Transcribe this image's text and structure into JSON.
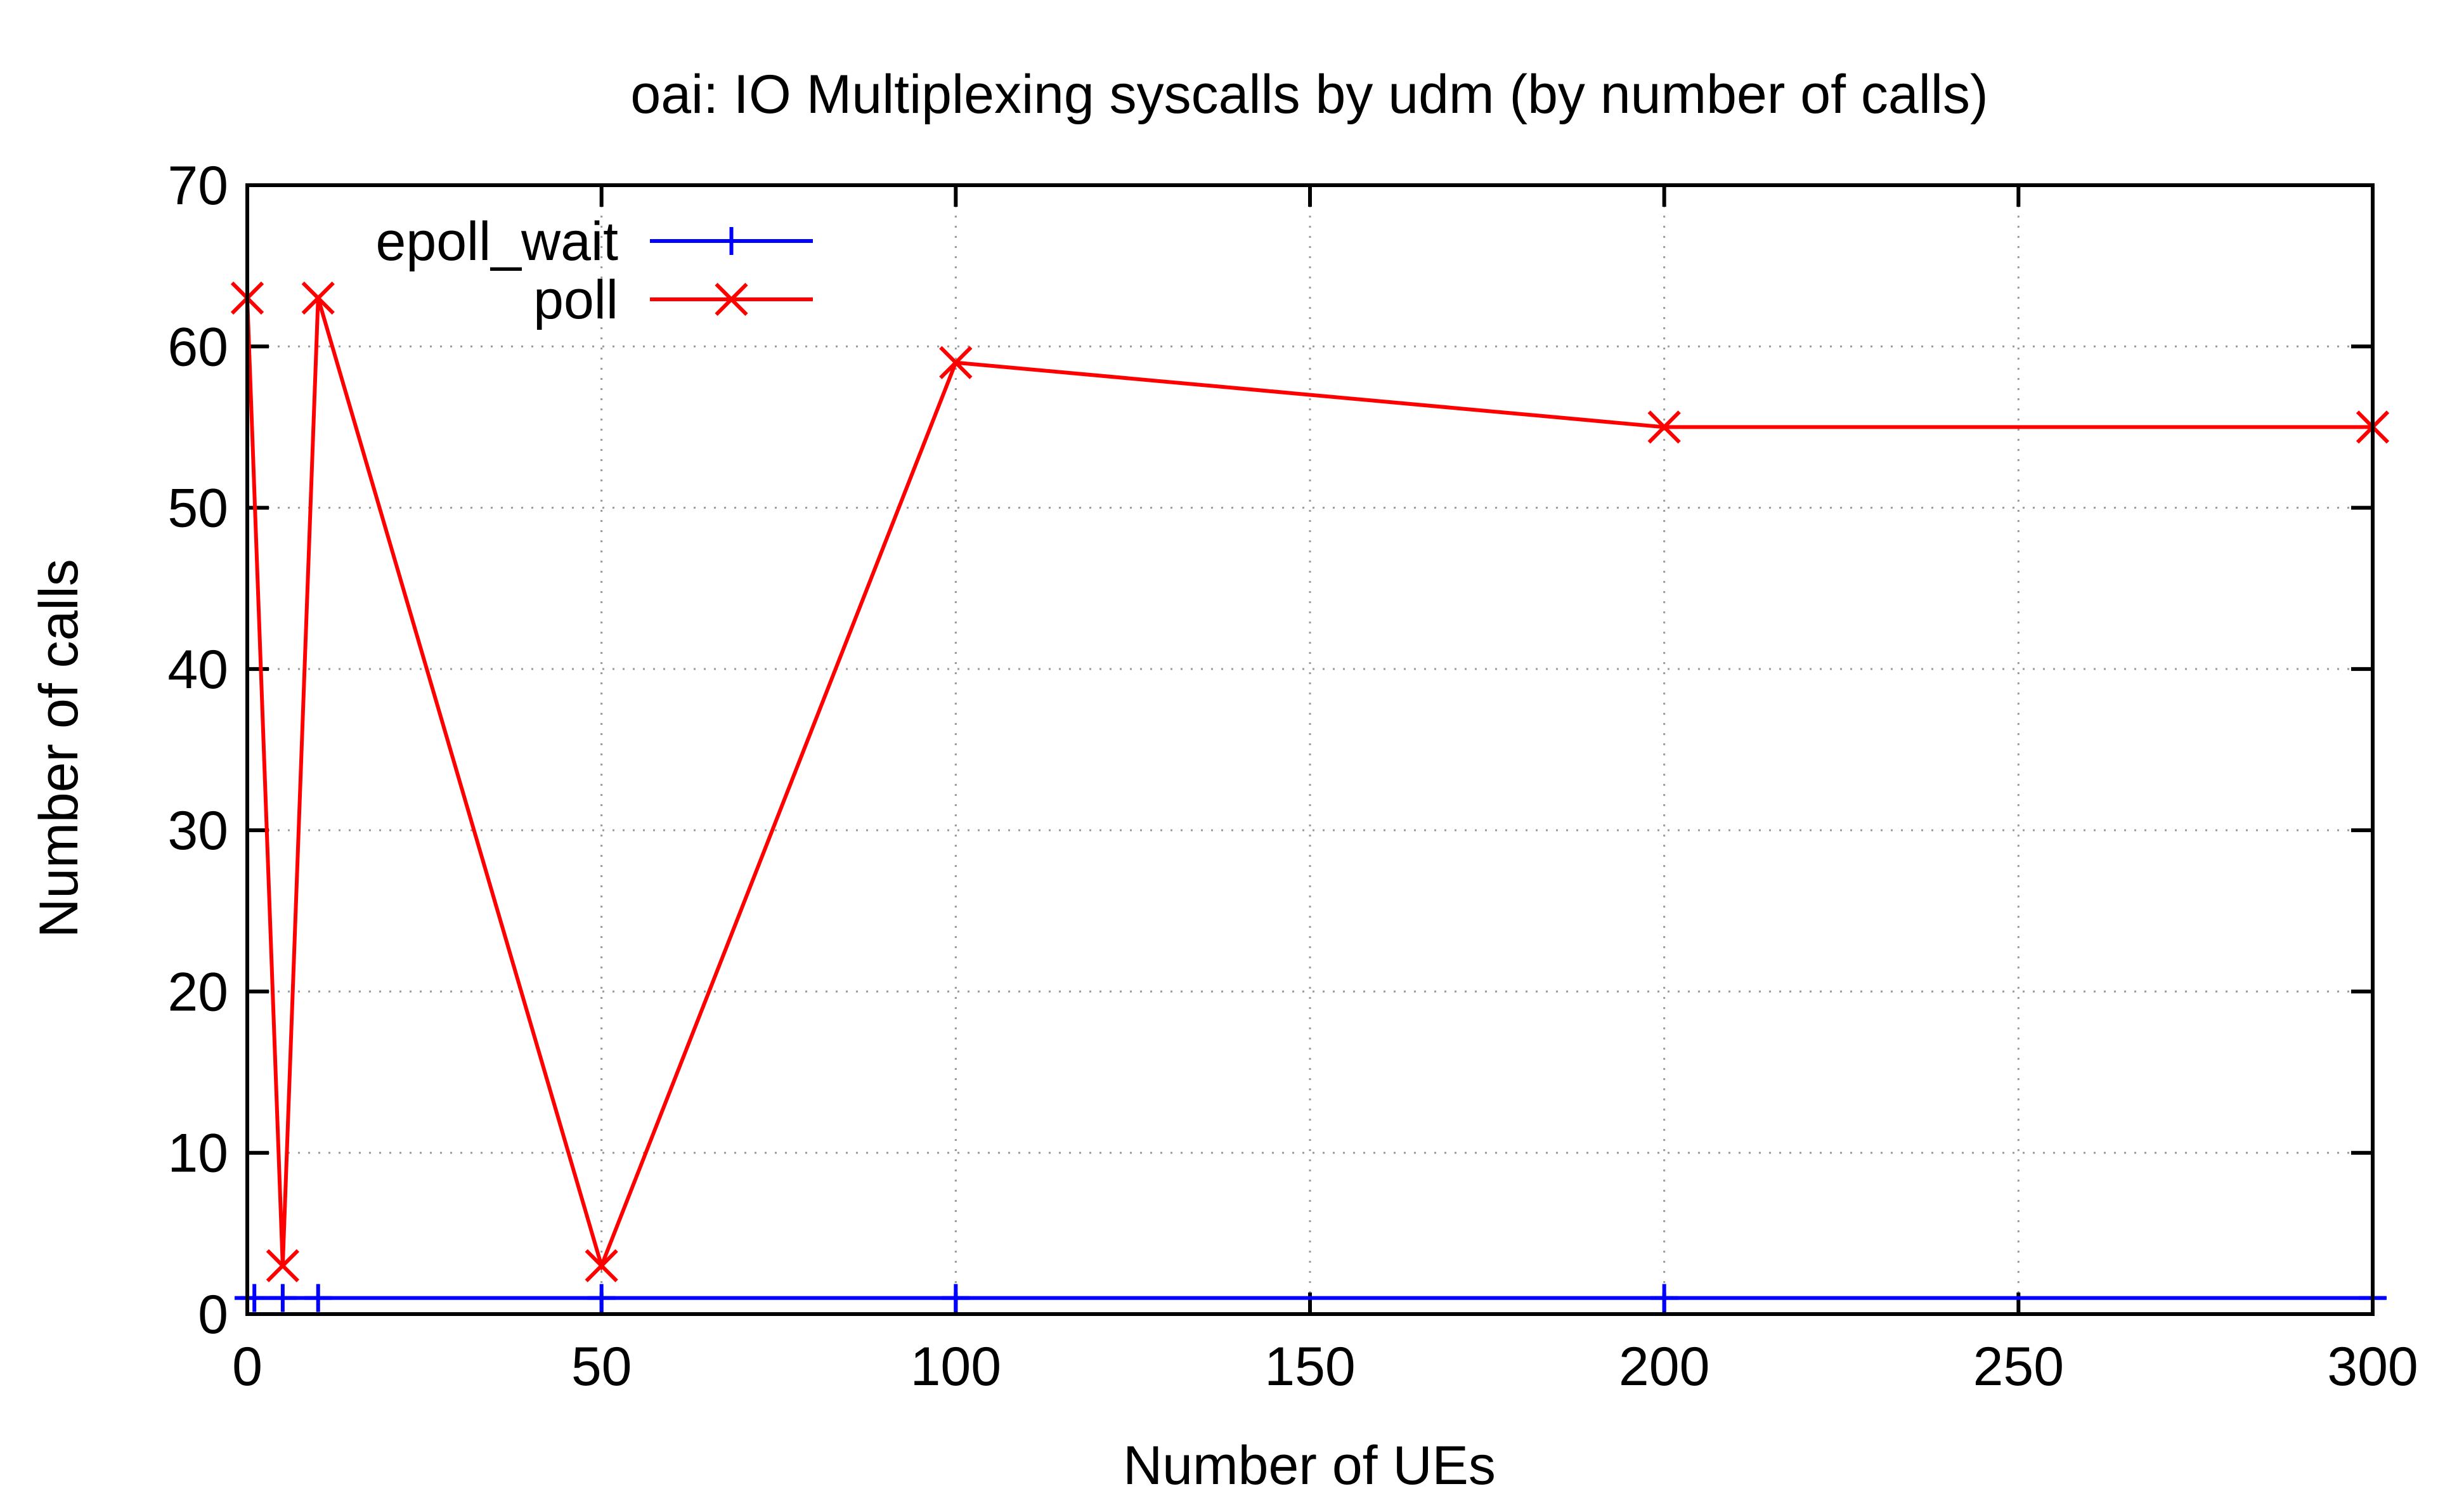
{
  "chart_data": {
    "type": "line",
    "title": "oai: IO Multiplexing syscalls by udm (by number of calls)",
    "xlabel": "Number of UEs",
    "ylabel": "Number of calls",
    "xlim": [
      0,
      300
    ],
    "ylim": [
      0,
      70
    ],
    "xticks": [
      0,
      50,
      100,
      150,
      200,
      250,
      300
    ],
    "yticks": [
      0,
      10,
      20,
      30,
      40,
      50,
      60,
      70
    ],
    "grid": true,
    "legend_position": "top-left",
    "series": [
      {
        "name": "epoll_wait",
        "color": "#0000ff",
        "marker": "plus",
        "x": [
          1,
          5,
          10,
          50,
          100,
          200,
          300
        ],
        "y": [
          1,
          1,
          1,
          1,
          1,
          1,
          1
        ]
      },
      {
        "name": "poll",
        "color": "#ff0000",
        "marker": "cross",
        "x": [
          0,
          5,
          10,
          50,
          100,
          200,
          300
        ],
        "y": [
          63,
          3,
          63,
          3,
          59,
          55,
          55
        ]
      }
    ]
  }
}
